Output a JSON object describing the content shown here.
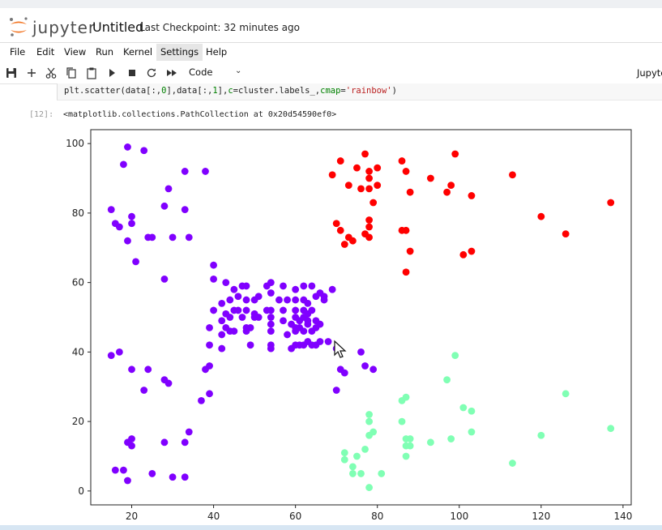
{
  "app": {
    "logo_text": "jupyter",
    "notebook_title": "Untitled",
    "checkpoint": "Last Checkpoint: 32 minutes ago"
  },
  "menu": [
    "File",
    "Edit",
    "View",
    "Run",
    "Kernel",
    "Settings",
    "Help"
  ],
  "active_menu": "Settings",
  "toolbar": {
    "cell_type": "Code",
    "kernel_label": "Jupyte",
    "icons": [
      "save-icon",
      "add-cell-icon",
      "cut-icon",
      "copy-icon",
      "paste-icon",
      "run-icon",
      "stop-icon",
      "restart-icon",
      "fast-forward-icon"
    ]
  },
  "cell": {
    "code": {
      "prefix": "plt.scatter(data[:,",
      "n0": "0",
      "mid": "],data[:,",
      "n1": "1",
      "mid2": "],",
      "kw": "c",
      "mid3": "=cluster.labels_,",
      "kw2": "cmap",
      "mid4": "=",
      "str": "'rainbow'",
      "suffix": ")"
    },
    "output_prompt": "[12]:",
    "output_text": "<matplotlib.collections.PathCollection at 0x20d54590ef0>"
  },
  "chart_data": {
    "type": "scatter",
    "title": "",
    "xlabel": "",
    "ylabel": "",
    "xlim": [
      10,
      142
    ],
    "ylim": [
      -4,
      104
    ],
    "xticks": [
      20,
      40,
      60,
      80,
      100,
      120,
      140
    ],
    "yticks": [
      0,
      20,
      40,
      60,
      80,
      100
    ],
    "colors": {
      "purple": "#8000ff",
      "red": "#ff0000",
      "green": "#80ffb4"
    },
    "series": [
      {
        "color": "#8000ff",
        "points": [
          [
            19,
            99
          ],
          [
            23,
            98
          ],
          [
            18,
            94
          ],
          [
            33,
            92
          ],
          [
            38,
            92
          ],
          [
            29,
            87
          ],
          [
            33,
            81
          ],
          [
            28,
            82
          ],
          [
            20,
            79
          ],
          [
            15,
            81
          ],
          [
            16,
            77
          ],
          [
            17,
            76
          ],
          [
            20,
            77
          ],
          [
            24,
            73
          ],
          [
            25,
            73
          ],
          [
            30,
            73
          ],
          [
            34,
            73
          ],
          [
            19,
            72
          ],
          [
            21,
            66
          ],
          [
            40,
            65
          ],
          [
            28,
            61
          ],
          [
            40,
            61
          ],
          [
            43,
            60
          ],
          [
            45,
            58
          ],
          [
            47,
            59
          ],
          [
            48,
            59
          ],
          [
            53,
            59
          ],
          [
            54,
            60
          ],
          [
            57,
            59
          ],
          [
            60,
            58
          ],
          [
            62,
            59
          ],
          [
            64,
            59
          ],
          [
            67,
            56
          ],
          [
            69,
            58
          ],
          [
            66,
            57
          ],
          [
            42,
            54
          ],
          [
            44,
            55
          ],
          [
            46,
            56
          ],
          [
            48,
            55
          ],
          [
            50,
            55
          ],
          [
            51,
            56
          ],
          [
            54,
            57
          ],
          [
            56,
            55
          ],
          [
            58,
            55
          ],
          [
            60,
            55
          ],
          [
            62,
            55
          ],
          [
            63,
            54
          ],
          [
            65,
            56
          ],
          [
            67,
            55
          ],
          [
            40,
            52
          ],
          [
            43,
            51
          ],
          [
            45,
            52
          ],
          [
            46,
            52
          ],
          [
            48,
            52
          ],
          [
            50,
            51
          ],
          [
            53,
            52
          ],
          [
            54,
            52
          ],
          [
            57,
            52
          ],
          [
            60,
            52
          ],
          [
            62,
            52
          ],
          [
            63,
            51
          ],
          [
            64,
            52
          ],
          [
            42,
            49
          ],
          [
            44,
            50
          ],
          [
            47,
            50
          ],
          [
            50,
            50
          ],
          [
            51,
            50
          ],
          [
            54,
            50
          ],
          [
            57,
            49
          ],
          [
            60,
            50
          ],
          [
            61,
            49
          ],
          [
            62,
            50
          ],
          [
            63,
            49
          ],
          [
            65,
            49
          ],
          [
            66,
            48
          ],
          [
            39,
            47
          ],
          [
            43,
            47
          ],
          [
            45,
            46
          ],
          [
            48,
            47
          ],
          [
            49,
            47
          ],
          [
            54,
            48
          ],
          [
            59,
            48
          ],
          [
            60,
            47
          ],
          [
            61,
            47
          ],
          [
            63,
            48
          ],
          [
            64,
            46
          ],
          [
            65,
            47
          ],
          [
            42,
            45
          ],
          [
            44,
            46
          ],
          [
            48,
            46
          ],
          [
            54,
            46
          ],
          [
            58,
            45
          ],
          [
            60,
            46
          ],
          [
            62,
            46
          ],
          [
            39,
            42
          ],
          [
            42,
            41
          ],
          [
            49,
            42
          ],
          [
            54,
            42
          ],
          [
            59,
            41
          ],
          [
            60,
            42
          ],
          [
            61,
            42
          ],
          [
            62,
            42
          ],
          [
            63,
            43
          ],
          [
            64,
            42
          ],
          [
            65,
            42
          ],
          [
            66,
            43
          ],
          [
            68,
            43
          ],
          [
            70,
            41
          ],
          [
            54,
            41
          ],
          [
            15,
            39
          ],
          [
            17,
            40
          ],
          [
            76,
            40
          ],
          [
            71,
            35
          ],
          [
            72,
            34
          ],
          [
            77,
            36
          ],
          [
            79,
            35
          ],
          [
            38,
            35
          ],
          [
            39,
            36
          ],
          [
            20,
            35
          ],
          [
            24,
            35
          ],
          [
            28,
            32
          ],
          [
            29,
            31
          ],
          [
            23,
            29
          ],
          [
            39,
            28
          ],
          [
            37,
            26
          ],
          [
            70,
            29
          ],
          [
            34,
            17
          ],
          [
            20,
            15
          ],
          [
            19,
            14
          ],
          [
            20,
            13
          ],
          [
            28,
            14
          ],
          [
            33,
            14
          ],
          [
            16,
            6
          ],
          [
            18,
            6
          ],
          [
            25,
            5
          ],
          [
            30,
            4
          ],
          [
            33,
            4
          ],
          [
            19,
            3
          ]
        ]
      },
      {
        "color": "#ff0000",
        "points": [
          [
            77,
            97
          ],
          [
            99,
            97
          ],
          [
            71,
            95
          ],
          [
            86,
            95
          ],
          [
            78,
            92
          ],
          [
            75,
            93
          ],
          [
            80,
            93
          ],
          [
            87,
            92
          ],
          [
            69,
            91
          ],
          [
            113,
            91
          ],
          [
            78,
            90
          ],
          [
            93,
            90
          ],
          [
            73,
            88
          ],
          [
            80,
            88
          ],
          [
            98,
            88
          ],
          [
            76,
            87
          ],
          [
            78,
            87
          ],
          [
            88,
            86
          ],
          [
            97,
            86
          ],
          [
            103,
            85
          ],
          [
            79,
            83
          ],
          [
            137,
            83
          ],
          [
            120,
            79
          ],
          [
            78,
            78
          ],
          [
            70,
            77
          ],
          [
            78,
            76
          ],
          [
            71,
            75
          ],
          [
            86,
            75
          ],
          [
            87,
            75
          ],
          [
            126,
            74
          ],
          [
            77,
            74
          ],
          [
            73,
            73
          ],
          [
            74,
            72
          ],
          [
            78,
            73
          ],
          [
            72,
            71
          ],
          [
            101,
            68
          ],
          [
            103,
            69
          ],
          [
            88,
            69
          ],
          [
            87,
            63
          ]
        ]
      },
      {
        "color": "#80ffb4",
        "points": [
          [
            99,
            39
          ],
          [
            97,
            32
          ],
          [
            126,
            28
          ],
          [
            87,
            27
          ],
          [
            86,
            26
          ],
          [
            101,
            24
          ],
          [
            103,
            23
          ],
          [
            78,
            22
          ],
          [
            78,
            20
          ],
          [
            86,
            20
          ],
          [
            137,
            18
          ],
          [
            79,
            17
          ],
          [
            78,
            16
          ],
          [
            103,
            17
          ],
          [
            120,
            16
          ],
          [
            87,
            15
          ],
          [
            88,
            15
          ],
          [
            98,
            15
          ],
          [
            93,
            14
          ],
          [
            87,
            13
          ],
          [
            88,
            13
          ],
          [
            77,
            12
          ],
          [
            72,
            11
          ],
          [
            72,
            9
          ],
          [
            87,
            10
          ],
          [
            74,
            7
          ],
          [
            74,
            5
          ],
          [
            76,
            5
          ],
          [
            81,
            5
          ],
          [
            113,
            8
          ],
          [
            78,
            1
          ],
          [
            75,
            10
          ]
        ]
      }
    ]
  }
}
